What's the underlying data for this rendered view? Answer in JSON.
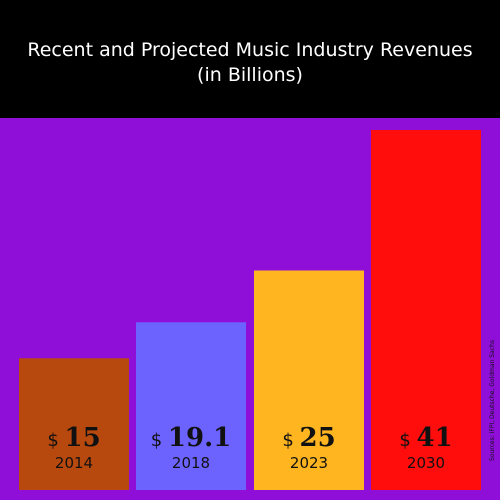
{
  "chart_data": {
    "type": "bar",
    "title": "Recent and Projected Music Industry Revenues",
    "subtitle": "(in Billions)",
    "categories": [
      "2014",
      "2018",
      "2023",
      "2030"
    ],
    "values": [
      15,
      19.1,
      25,
      41
    ],
    "value_labels": [
      "15",
      "19.1",
      "25",
      "41"
    ],
    "value_prefix": "$",
    "bar_colors": [
      "#b8490e",
      "#6c63ff",
      "#ffb520",
      "#ff0d0d"
    ],
    "ylim": [
      0,
      41
    ],
    "grid": false,
    "source": "Sources: IFPI, Deutsche, Goldman Sachs"
  },
  "colors": {
    "background": "#8f0fd8",
    "header_background": "#000000",
    "header_text": "#ffffff"
  }
}
